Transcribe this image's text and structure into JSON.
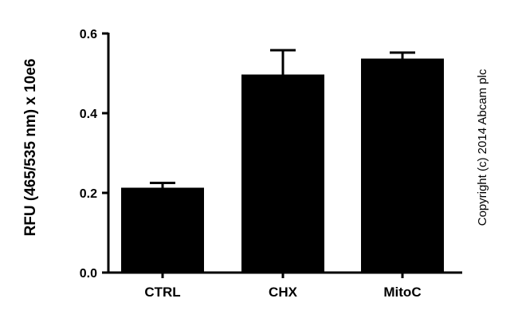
{
  "chart_data": {
    "type": "bar",
    "categories": [
      "CTRL",
      "CHX",
      "MitoC"
    ],
    "values": [
      0.213,
      0.497,
      0.537
    ],
    "error_upper": [
      0.225,
      0.558,
      0.552
    ],
    "ylabel": "RFU (465/535 nm) x 10e6",
    "xlabel": "",
    "ylim": [
      0.0,
      0.6
    ],
    "yticks": [
      0.0,
      0.2,
      0.4,
      0.6
    ],
    "ytick_labels": [
      "0.0",
      "0.2",
      "0.4",
      "0.6"
    ],
    "grid": false,
    "bar_color": "#000000"
  },
  "watermark": "Copyright (c) 2014 Abcam plc"
}
